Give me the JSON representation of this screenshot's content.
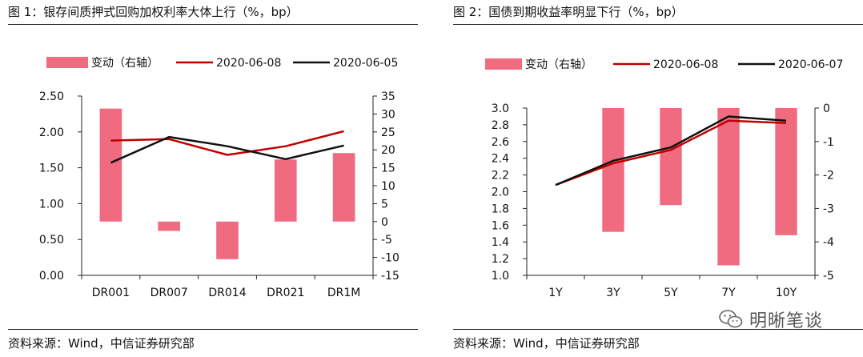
{
  "panels": [
    {
      "title": "图 1：银存间质押式回购加权利率大体上行（%，bp）",
      "source": "资料来源：Wind，中信证券研究部",
      "chart_data": {
        "type": "bar",
        "categories": [
          "DR001",
          "DR007",
          "DR014",
          "DR021",
          "DR1M"
        ],
        "left_axis": {
          "min": 0,
          "max": 2.5,
          "ticks": [
            0.0,
            0.5,
            1.0,
            1.5,
            2.0,
            2.5
          ],
          "tick_labels": [
            "0.00",
            "0.50",
            "1.00",
            "1.50",
            "2.00",
            "2.50"
          ]
        },
        "right_axis": {
          "min": -15,
          "max": 35,
          "ticks": [
            -15,
            -10,
            -5,
            0,
            5,
            10,
            15,
            20,
            25,
            30,
            35
          ],
          "tick_labels": [
            "-15",
            "-10",
            "-5",
            "0",
            "5",
            "10",
            "15",
            "20",
            "25",
            "30",
            "35"
          ]
        },
        "series": [
          {
            "name": "变动（右轴）",
            "kind": "bar",
            "axis": "right",
            "color": "#F16B80",
            "values": [
              31.5,
              -2.6,
              -10.5,
              17.3,
              19.1
            ]
          },
          {
            "name": "2020-06-08",
            "kind": "line",
            "axis": "left",
            "color": "#C00000",
            "values": [
              1.88,
              1.9,
              1.68,
              1.8,
              2.01
            ]
          },
          {
            "name": "2020-06-05",
            "kind": "line",
            "axis": "left",
            "color": "#111111",
            "values": [
              1.57,
              1.93,
              1.8,
              1.62,
              1.81
            ]
          }
        ]
      }
    },
    {
      "title": "图 2：国债到期收益率明显下行（%，bp）",
      "source": "资料来源：Wind，中信证券研究部",
      "chart_data": {
        "type": "bar",
        "categories": [
          "1Y",
          "3Y",
          "5Y",
          "7Y",
          "10Y"
        ],
        "left_axis": {
          "min": 1.0,
          "max": 3.0,
          "ticks": [
            1.0,
            1.2,
            1.4,
            1.6,
            1.8,
            2.0,
            2.2,
            2.4,
            2.6,
            2.8,
            3.0
          ],
          "tick_labels": [
            "1.0",
            "1.2",
            "1.4",
            "1.6",
            "1.8",
            "2.0",
            "2.2",
            "2.4",
            "2.6",
            "2.8",
            "3.0"
          ]
        },
        "right_axis": {
          "min": -5,
          "max": 0,
          "ticks": [
            -5,
            -4,
            -3,
            -2,
            -1,
            0
          ],
          "tick_labels": [
            "-5",
            "-4",
            "-3",
            "-2",
            "-1",
            "0"
          ]
        },
        "series": [
          {
            "name": "变动（右轴）",
            "kind": "bar",
            "axis": "right",
            "color": "#F16B80",
            "values": [
              0,
              -3.7,
              -2.9,
              -4.7,
              -3.8
            ]
          },
          {
            "name": "2020-06-08",
            "kind": "line",
            "axis": "left",
            "color": "#C00000",
            "values": [
              2.08,
              2.34,
              2.5,
              2.85,
              2.82
            ]
          },
          {
            "name": "2020-06-07",
            "kind": "line",
            "axis": "left",
            "color": "#111111",
            "values": [
              2.08,
              2.37,
              2.53,
              2.9,
              2.85
            ]
          }
        ]
      }
    }
  ],
  "watermark": {
    "text": "明晰笔谈",
    "icon": "wechat-icon"
  }
}
